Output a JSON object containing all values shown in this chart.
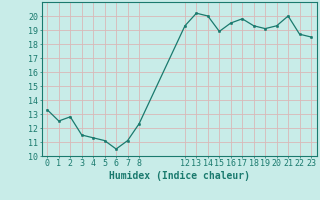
{
  "x": [
    0,
    1,
    2,
    3,
    4,
    5,
    6,
    7,
    8,
    12,
    13,
    14,
    15,
    16,
    17,
    18,
    19,
    20,
    21,
    22,
    23
  ],
  "y": [
    13.3,
    12.5,
    12.8,
    11.5,
    11.3,
    11.1,
    10.5,
    11.1,
    12.3,
    19.3,
    20.2,
    20.0,
    18.9,
    19.5,
    19.8,
    19.3,
    19.1,
    19.3,
    20.0,
    18.7,
    18.5
  ],
  "line_color": "#1a7a6e",
  "marker": "o",
  "markersize": 1.8,
  "linewidth": 0.9,
  "bg_color": "#c8ece8",
  "grid_color": "#d9b8b8",
  "xlabel": "Humidex (Indice chaleur)",
  "xlabel_fontsize": 7,
  "tick_fontsize": 6,
  "ylim": [
    10,
    21
  ],
  "yticks": [
    10,
    11,
    12,
    13,
    14,
    15,
    16,
    17,
    18,
    19,
    20
  ],
  "xticks": [
    0,
    1,
    2,
    3,
    4,
    5,
    6,
    7,
    8,
    12,
    13,
    14,
    15,
    16,
    17,
    18,
    19,
    20,
    21,
    22,
    23
  ],
  "xlim": [
    -0.5,
    23.5
  ]
}
